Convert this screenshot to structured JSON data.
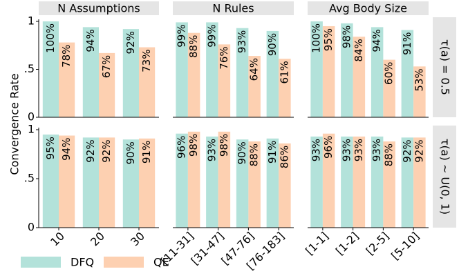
{
  "ylabel": "Convergence Rate",
  "row_labels": [
    "τ(a) = 0.5",
    "τ(a) ~ U(0, 1)"
  ],
  "legend": [
    {
      "name": "DFQ",
      "color": "#b3e2da"
    },
    {
      "name": "QE",
      "color": "#fdd0b1"
    }
  ],
  "ylim": [
    0,
    1
  ],
  "yticks": [
    {
      "value": 0,
      "label": "0"
    },
    {
      "value": 0.5,
      "label": ".5"
    },
    {
      "value": 1,
      "label": "1"
    }
  ],
  "chart_data": [
    {
      "type": "bar",
      "title": "N Assumptions",
      "categories": [
        "10",
        "20",
        "30"
      ],
      "rows": [
        {
          "series": [
            {
              "values": [
                1.0,
                0.94,
                0.92
              ],
              "value_labels": [
                "100%",
                "94%",
                "92%"
              ]
            },
            {
              "values": [
                0.78,
                0.67,
                0.73
              ],
              "value_labels": [
                "78%",
                "67%",
                "73%"
              ]
            }
          ]
        },
        {
          "series": [
            {
              "values": [
                0.95,
                0.92,
                0.9
              ],
              "value_labels": [
                "95%",
                "92%",
                "90%"
              ]
            },
            {
              "values": [
                0.94,
                0.92,
                0.91
              ],
              "value_labels": [
                "94%",
                "92%",
                "91%"
              ]
            }
          ]
        }
      ]
    },
    {
      "type": "bar",
      "title": "N Rules",
      "categories": [
        "[11-31]",
        "[31-47]",
        "[47-76]",
        "[76-183]"
      ],
      "rows": [
        {
          "series": [
            {
              "values": [
                0.99,
                0.99,
                0.93,
                0.9
              ],
              "value_labels": [
                "99%",
                "99%",
                "93%",
                "90%"
              ]
            },
            {
              "values": [
                0.88,
                0.76,
                0.64,
                0.61
              ],
              "value_labels": [
                "88%",
                "76%",
                "64%",
                "61%"
              ]
            }
          ]
        },
        {
          "series": [
            {
              "values": [
                0.96,
                0.93,
                0.9,
                0.91
              ],
              "value_labels": [
                "96%",
                "93%",
                "90%",
                "91%"
              ]
            },
            {
              "values": [
                0.98,
                0.98,
                0.88,
                0.86
              ],
              "value_labels": [
                "98%",
                "98%",
                "88%",
                "86%"
              ]
            }
          ]
        }
      ]
    },
    {
      "type": "bar",
      "title": "Avg Body Size",
      "categories": [
        "[1-1]",
        "[1-2]",
        "[2-5]",
        "[5-10]"
      ],
      "rows": [
        {
          "series": [
            {
              "values": [
                1.0,
                0.98,
                0.94,
                0.91
              ],
              "value_labels": [
                "100%",
                "98%",
                "94%",
                "91%"
              ]
            },
            {
              "values": [
                0.95,
                0.84,
                0.6,
                0.53
              ],
              "value_labels": [
                "95%",
                "84%",
                "60%",
                "53%"
              ]
            }
          ]
        },
        {
          "series": [
            {
              "values": [
                0.93,
                0.93,
                0.93,
                0.92
              ],
              "value_labels": [
                "93%",
                "93%",
                "93%",
                "92%"
              ]
            },
            {
              "values": [
                0.96,
                0.93,
                0.88,
                0.92
              ],
              "value_labels": [
                "96%",
                "93%",
                "88%",
                "92%"
              ]
            }
          ]
        }
      ]
    }
  ]
}
